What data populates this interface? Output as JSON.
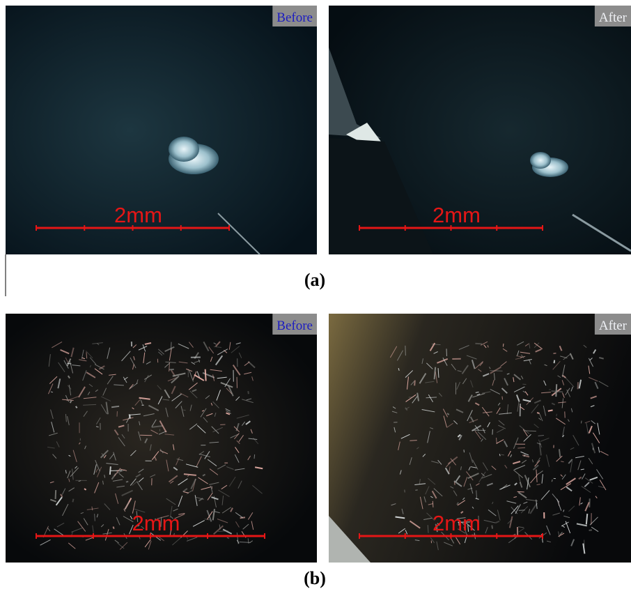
{
  "rows": [
    {
      "caption": "(a)",
      "panels": [
        {
          "label": "Before",
          "scale": "2mm"
        },
        {
          "label": "After",
          "scale": "2mm"
        }
      ]
    },
    {
      "caption": "(b)",
      "panels": [
        {
          "label": "Before",
          "scale": "2mm"
        },
        {
          "label": "After",
          "scale": "2mm"
        }
      ]
    }
  ]
}
